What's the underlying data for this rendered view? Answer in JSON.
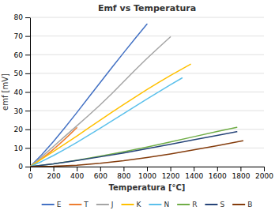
{
  "chart_data": {
    "type": "line",
    "title": "Emf vs Temperatura",
    "x_label": "Temperatura [°C]",
    "y_label": "emf [mV]",
    "xlim": [
      0,
      2000
    ],
    "ylim": [
      0,
      80
    ],
    "xticks": [
      0,
      200,
      400,
      600,
      800,
      1000,
      1200,
      1400,
      1600,
      1800,
      2000
    ],
    "yticks": [
      0,
      10,
      20,
      30,
      40,
      50,
      60,
      70,
      80
    ],
    "grid": "y",
    "legend": "bottom",
    "series": [
      {
        "name": "E",
        "color": "#4472C4",
        "x": [
          0,
          100,
          200,
          300,
          400,
          500,
          600,
          700,
          800,
          900,
          1000
        ],
        "values": [
          0,
          6.319,
          13.421,
          21.036,
          28.946,
          37.005,
          45.093,
          53.112,
          61.017,
          68.787,
          76.373
        ]
      },
      {
        "name": "T",
        "color": "#ED7D31",
        "x": [
          0,
          50,
          100,
          150,
          200,
          250,
          300,
          350,
          400
        ],
        "values": [
          0,
          2.036,
          4.279,
          6.704,
          9.288,
          12.013,
          14.862,
          17.819,
          20.872
        ]
      },
      {
        "name": "J",
        "color": "#A5A5A5",
        "x": [
          0,
          100,
          200,
          300,
          400,
          500,
          600,
          700,
          800,
          900,
          1000,
          1100,
          1200
        ],
        "values": [
          0,
          5.269,
          10.779,
          16.327,
          21.848,
          27.393,
          33.102,
          39.132,
          45.494,
          51.877,
          57.953,
          63.792,
          69.553
        ]
      },
      {
        "name": "K",
        "color": "#FFC000",
        "x": [
          0,
          100,
          200,
          300,
          400,
          500,
          600,
          700,
          800,
          900,
          1000,
          1100,
          1200,
          1372
        ],
        "values": [
          0,
          4.096,
          8.138,
          12.209,
          16.397,
          20.644,
          24.905,
          29.129,
          33.275,
          37.326,
          41.276,
          45.119,
          48.838,
          54.886
        ]
      },
      {
        "name": "N",
        "color": "#5BC0EB",
        "x": [
          0,
          100,
          200,
          300,
          400,
          500,
          600,
          700,
          800,
          900,
          1000,
          1100,
          1200,
          1300
        ],
        "values": [
          0,
          2.774,
          5.913,
          9.341,
          12.974,
          16.748,
          20.613,
          24.527,
          28.455,
          32.371,
          36.256,
          40.087,
          43.846,
          47.513
        ]
      },
      {
        "name": "R",
        "color": "#70AD47",
        "x": [
          0,
          200,
          400,
          600,
          800,
          1000,
          1200,
          1400,
          1600,
          1768
        ],
        "values": [
          0,
          1.469,
          3.408,
          5.583,
          7.95,
          10.506,
          13.228,
          16.035,
          18.849,
          21.101
        ]
      },
      {
        "name": "S",
        "color": "#264478",
        "x": [
          0,
          200,
          400,
          600,
          800,
          1000,
          1200,
          1400,
          1600,
          1768
        ],
        "values": [
          0,
          1.441,
          3.259,
          5.239,
          7.345,
          9.587,
          11.951,
          14.373,
          16.748,
          18.693
        ]
      },
      {
        "name": "B",
        "color": "#843C0C",
        "x": [
          0,
          200,
          400,
          600,
          800,
          1000,
          1200,
          1400,
          1600,
          1820
        ],
        "values": [
          0,
          0.178,
          0.787,
          1.792,
          3.154,
          4.834,
          6.786,
          8.956,
          11.263,
          13.82
        ]
      }
    ]
  }
}
